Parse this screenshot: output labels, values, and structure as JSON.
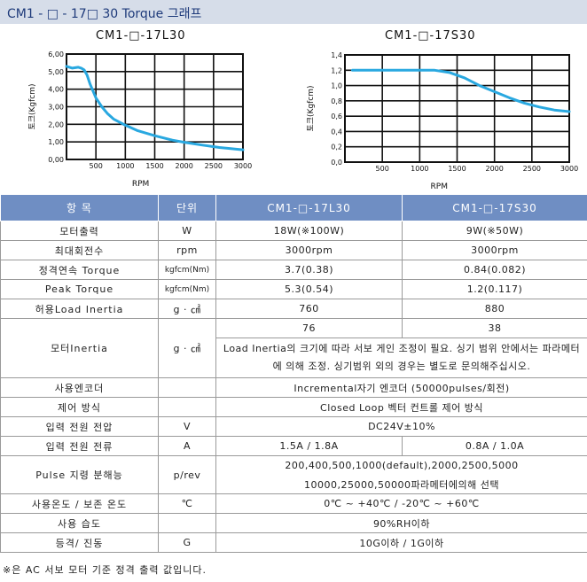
{
  "page_title": "CM1 - □ - 17□ 30 Torque 그래프",
  "chart_data": [
    {
      "type": "line",
      "title": "CM1-□-17L30",
      "xlabel": "RPM",
      "ylabel": "토크(Kgfcm)",
      "xlim": [
        0,
        3000
      ],
      "ylim": [
        0,
        6
      ],
      "xticks": [
        "500",
        "1000",
        "1500",
        "2000",
        "2500",
        "3000"
      ],
      "yticks": [
        "0,00",
        "1,00",
        "2,00",
        "3,00",
        "4,00",
        "5,00",
        "6,00"
      ],
      "grid": true,
      "color": "#29a8e0",
      "x": [
        0,
        100,
        200,
        250,
        300,
        350,
        400,
        500,
        600,
        700,
        800,
        1000,
        1200,
        1500,
        1800,
        2000,
        2300,
        2600,
        3000
      ],
      "y": [
        5.3,
        5.2,
        5.25,
        5.2,
        5.1,
        4.8,
        4.3,
        3.5,
        3.0,
        2.6,
        2.3,
        1.95,
        1.65,
        1.35,
        1.1,
        0.98,
        0.82,
        0.68,
        0.55
      ]
    },
    {
      "type": "line",
      "title": "CM1-□-17S30",
      "xlabel": "RPM",
      "ylabel": "토크(Kgfcm)",
      "xlim": [
        0,
        3000
      ],
      "ylim": [
        0,
        1.4
      ],
      "xticks": [
        "500",
        "1000",
        "1500",
        "2000",
        "2500",
        "3000"
      ],
      "yticks": [
        "0,0",
        "0,2",
        "0,4",
        "0,6",
        "0,8",
        "1,0",
        "1,2",
        "1,4"
      ],
      "grid": true,
      "color": "#29a8e0",
      "x": [
        100,
        500,
        1000,
        1200,
        1400,
        1600,
        1800,
        2000,
        2200,
        2400,
        2600,
        2800,
        3000
      ],
      "y": [
        1.2,
        1.2,
        1.2,
        1.2,
        1.17,
        1.1,
        1.0,
        0.92,
        0.84,
        0.77,
        0.72,
        0.68,
        0.66
      ]
    }
  ],
  "table": {
    "headers": [
      "항  목",
      "단위",
      "CM1-□-17L30",
      "CM1-□-17S30"
    ],
    "rows": {
      "motor_output": {
        "item": "모터출력",
        "unit": "W",
        "l30": "18W(※100W)",
        "s30": "9W(※50W)"
      },
      "max_speed": {
        "item": "최대회전수",
        "unit": "rpm",
        "l30": "3000rpm",
        "s30": "3000rpm"
      },
      "rated_torque": {
        "item": "정격연속 Torque",
        "unit": "kgfcm(Nm)",
        "l30": "3.7(0.38)",
        "s30": "0.84(0.082)"
      },
      "peak_torque": {
        "item": "Peak Torque",
        "unit": "kgfcm(Nm)",
        "l30": "5.3(0.54)",
        "s30": "1.2(0.117)"
      },
      "load_inertia": {
        "item": "허용Load Inertia",
        "unit": "g · ㎠",
        "l30": "760",
        "s30": "880"
      },
      "motor_inertia": {
        "item": "모터Inertia",
        "unit": "g · ㎠",
        "l30": "76",
        "s30": "38",
        "note": "Load Inertia의 크기에 따라 서보 게인 조정이 필요. 싱기 범위 안에서는 파라메터에 의해 조정. 싱기범위 외의 경우는 별도로 문의해주십시오."
      },
      "encoder": {
        "item": "사용엔코더",
        "unit": "",
        "value": "Incremental자기 엔코더 (50000pulses/회전)"
      },
      "control": {
        "item": "제어 방식",
        "unit": "",
        "value": "Closed Loop 벡터 컨트롤 제어 방식"
      },
      "input_voltage": {
        "item": "입력 전원 전압",
        "unit": "V",
        "value": "DC24V±10%"
      },
      "input_current": {
        "item": "입력 전원 전류",
        "unit": "A",
        "l30": "1.5A / 1.8A",
        "s30": "0.8A / 1.0A"
      },
      "pulse_resolution": {
        "item": "Pulse 지령 분해능",
        "unit": "p/rev",
        "line1": "200,400,500,1000(default),2000,2500,5000",
        "line2": "10000,25000,50000파라메터에의해 선택"
      },
      "temperature": {
        "item": "사용온도 / 보존 온도",
        "unit": "℃",
        "value": "0℃ ~ +40℃ / -20℃ ~ +60℃"
      },
      "humidity": {
        "item": "사용 습도",
        "unit": "",
        "value": "90%RH이하"
      },
      "vibration": {
        "item": "등격/ 진동",
        "unit": "G",
        "value": "10G이하 / 1G이하"
      }
    }
  },
  "footnote": "※은 AC 서보 모터 기준 정격 출력 값입니다."
}
